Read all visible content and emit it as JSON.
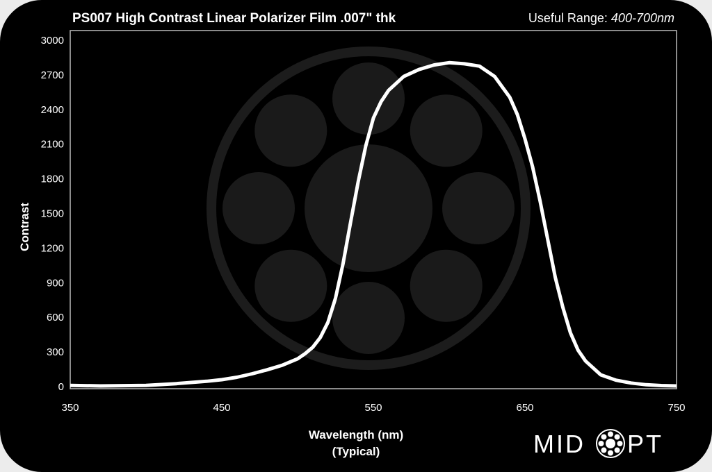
{
  "chart_data": {
    "type": "line",
    "title": "PS007 High Contrast Linear Polarizer Film .007\" thk",
    "range_label": "Useful Range: ",
    "range_value": "400-700nm",
    "xlabel": "Wavelength (nm)",
    "xlabel_sub": "(Typical)",
    "ylabel": "Contrast",
    "xlim": [
      350,
      750
    ],
    "ylim": [
      0,
      3000
    ],
    "x_ticks": [
      350,
      450,
      550,
      650,
      750
    ],
    "y_ticks": [
      0,
      300,
      600,
      900,
      1200,
      1500,
      1800,
      2100,
      2400,
      2700,
      3000
    ],
    "grid": false,
    "series": [
      {
        "color": "#ffffff",
        "x": [
          350,
          370,
          400,
          420,
          440,
          450,
          460,
          470,
          480,
          490,
          500,
          505,
          510,
          515,
          520,
          525,
          530,
          535,
          540,
          545,
          550,
          555,
          560,
          570,
          580,
          590,
          600,
          610,
          620,
          630,
          640,
          645,
          650,
          655,
          660,
          665,
          670,
          675,
          680,
          685,
          690,
          700,
          710,
          720,
          730,
          740,
          750
        ],
        "y": [
          5,
          0,
          5,
          20,
          40,
          54,
          75,
          105,
          140,
          180,
          235,
          280,
          335,
          420,
          550,
          760,
          1060,
          1420,
          1770,
          2080,
          2320,
          2460,
          2560,
          2680,
          2740,
          2780,
          2800,
          2790,
          2770,
          2680,
          2500,
          2350,
          2140,
          1900,
          1600,
          1270,
          940,
          680,
          460,
          310,
          215,
          96,
          50,
          25,
          10,
          3,
          0
        ]
      }
    ]
  },
  "brand": {
    "logo_text": "MIDOPT"
  }
}
